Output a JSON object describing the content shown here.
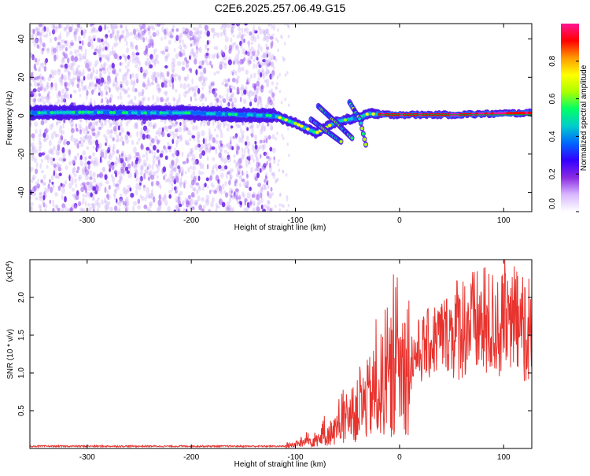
{
  "title": "C2E6.2025.257.06.49.G15",
  "colors": {
    "signal": "#7a2cf0",
    "snr_line": "#e8332e",
    "center_line": "#00aa33"
  },
  "chart_data": [
    {
      "type": "heatmap",
      "id": "spectrogram",
      "xlabel": "Height of straight line (km)",
      "ylabel": "Frequency (Hz)",
      "xlim": [
        -355,
        127
      ],
      "ylim": [
        -50,
        48
      ],
      "xticks": [
        -300,
        -200,
        -100,
        0,
        100
      ],
      "yticks": [
        -40,
        -20,
        0,
        20,
        40
      ],
      "colorbar": {
        "label": "Normalized spectral amplitude",
        "range": [
          0,
          1
        ],
        "ticks": [
          "0.0",
          "0.2",
          "0.4",
          "0.6",
          "0.8"
        ],
        "colormap": [
          "#ffffff",
          "#d8b8ff",
          "#8a2be2",
          "#3300ff",
          "#0066ff",
          "#00cccc",
          "#00ff66",
          "#aaff00",
          "#ffff00",
          "#ff9900",
          "#ff0000",
          "#ff1493"
        ]
      },
      "features": {
        "noise_region_x": [
          -355,
          -120
        ],
        "carrier_band": [
          {
            "x": -355,
            "f": 1.5
          },
          {
            "x": -300,
            "f": 1.8
          },
          {
            "x": -250,
            "f": 1.5
          },
          {
            "x": -200,
            "f": 1.5
          },
          {
            "x": -150,
            "f": 0.5
          },
          {
            "x": -120,
            "f": 0
          },
          {
            "x": -100,
            "f": -4
          },
          {
            "x": -80,
            "f": -9
          },
          {
            "x": -60,
            "f": -3
          },
          {
            "x": -40,
            "f": -1
          },
          {
            "x": -30,
            "f": 1
          },
          {
            "x": -10,
            "f": 0.5
          },
          {
            "x": 50,
            "f": 0.5
          },
          {
            "x": 127,
            "f": 1.5
          }
        ],
        "multipath_branches": [
          [
            {
              "x": -85,
              "f": -2
            },
            {
              "x": -70,
              "f": -8
            },
            {
              "x": -55,
              "f": -14
            }
          ],
          [
            {
              "x": -78,
              "f": 5
            },
            {
              "x": -60,
              "f": -4
            },
            {
              "x": -45,
              "f": -12
            }
          ],
          [
            {
              "x": -48,
              "f": 7
            },
            {
              "x": -38,
              "f": -2
            },
            {
              "x": -32,
              "f": -16
            }
          ]
        ]
      }
    },
    {
      "type": "line",
      "id": "snr",
      "xlabel": "Height of straight line (km)",
      "ylabel": "SNR (10 * v/v)",
      "yscale_note": "(x10",
      "yscale_exp": "4",
      "xlim": [
        -355,
        127
      ],
      "ylim": [
        0,
        25000
      ],
      "xticks": [
        -300,
        -200,
        -100,
        0,
        100
      ],
      "yticks": [
        5000,
        10000,
        15000,
        20000
      ],
      "ytick_labels": [
        "0.5",
        "1.0",
        "1.5",
        "2.0"
      ],
      "envelope": [
        {
          "x": -355,
          "y": 300
        },
        {
          "x": -200,
          "y": 300
        },
        {
          "x": -110,
          "y": 300
        },
        {
          "x": -95,
          "y": 700
        },
        {
          "x": -80,
          "y": 1200
        },
        {
          "x": -60,
          "y": 2500
        },
        {
          "x": -40,
          "y": 5000
        },
        {
          "x": -20,
          "y": 8000
        },
        {
          "x": 0,
          "y": 10500
        },
        {
          "x": 20,
          "y": 13000
        },
        {
          "x": 40,
          "y": 15000
        },
        {
          "x": 60,
          "y": 16300
        },
        {
          "x": 80,
          "y": 16500
        },
        {
          "x": 100,
          "y": 16200
        },
        {
          "x": 127,
          "y": 16000
        }
      ]
    }
  ]
}
